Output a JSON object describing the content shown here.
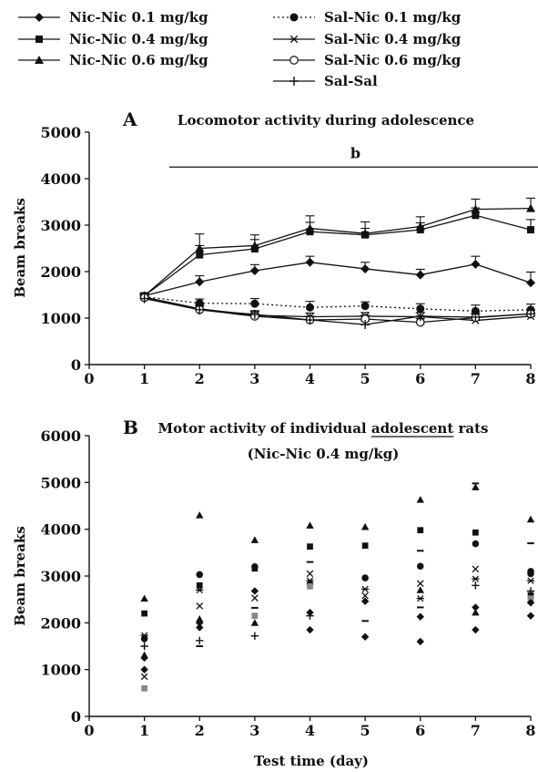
{
  "legend": [
    {
      "key": "nic01",
      "label": "Nic-Nic 0.1 mg/kg",
      "marker": "diamond",
      "line": "solid"
    },
    {
      "key": "nic04",
      "label": "Nic-Nic 0.4 mg/kg",
      "marker": "square",
      "line": "solid"
    },
    {
      "key": "nic06",
      "label": "Nic-Nic 0.6 mg/kg",
      "marker": "triangle",
      "line": "solid"
    },
    {
      "key": "sal01",
      "label": "Sal-Nic 0.1 mg/kg",
      "marker": "circle",
      "line": "dotted"
    },
    {
      "key": "sal04",
      "label": "Sal-Nic 0.4 mg/kg",
      "marker": "star",
      "line": "solid"
    },
    {
      "key": "sal06",
      "label": "Sal-Nic 0.6 mg/kg",
      "marker": "open-circle",
      "line": "solid"
    },
    {
      "key": "salsal",
      "label": "Sal-Sal",
      "marker": "plus",
      "line": "solid"
    }
  ],
  "chart_data": [
    {
      "panel": "A",
      "type": "line",
      "title": "Locomotor activity during adolescence",
      "xlabel": "",
      "ylabel": "Beam breaks",
      "x": [
        1,
        2,
        3,
        4,
        5,
        6,
        7,
        8
      ],
      "xlim": [
        0,
        8
      ],
      "xticks": [
        0,
        1,
        2,
        3,
        4,
        5,
        6,
        7,
        8
      ],
      "ylim": [
        0,
        5000
      ],
      "yticks": [
        0,
        1000,
        2000,
        3000,
        4000,
        5000
      ],
      "significance": {
        "label": "b",
        "x_from": 1.45,
        "x_to": 8.2,
        "y": 4250
      },
      "series": [
        {
          "name": "Nic-Nic 0.1 mg/kg",
          "key": "nic01",
          "values": [
            1480,
            1780,
            2020,
            2200,
            2060,
            1930,
            2160,
            1760
          ],
          "errors": [
            60,
            130,
            130,
            130,
            140,
            120,
            170,
            230
          ]
        },
        {
          "name": "Nic-Nic 0.4 mg/kg",
          "key": "nic04",
          "values": [
            1480,
            2360,
            2490,
            2860,
            2790,
            2900,
            3210,
            2900
          ],
          "errors": [
            60,
            200,
            200,
            200,
            140,
            150,
            160,
            220
          ]
        },
        {
          "name": "Nic-Nic 0.6 mg/kg",
          "key": "nic06",
          "values": [
            1480,
            2500,
            2560,
            2930,
            2820,
            2970,
            3340,
            3360
          ],
          "errors": [
            60,
            310,
            230,
            270,
            250,
            210,
            220,
            220
          ]
        },
        {
          "name": "Sal-Nic 0.1 mg/kg",
          "key": "sal01",
          "values": [
            1460,
            1320,
            1310,
            1230,
            1260,
            1200,
            1150,
            1180
          ],
          "errors": [
            60,
            90,
            110,
            130,
            90,
            110,
            130,
            120
          ]
        },
        {
          "name": "Sal-Nic 0.4 mg/kg",
          "key": "sal04",
          "values": [
            1450,
            1200,
            1060,
            1030,
            1040,
            1030,
            950,
            1040
          ],
          "errors": [
            60,
            80,
            90,
            80,
            80,
            90,
            80,
            80
          ]
        },
        {
          "name": "Sal-Nic 0.6 mg/kg",
          "key": "sal06",
          "values": [
            1440,
            1180,
            1040,
            960,
            980,
            910,
            1010,
            1090
          ],
          "errors": [
            60,
            80,
            80,
            80,
            80,
            80,
            80,
            80
          ]
        },
        {
          "name": "Sal-Sal",
          "key": "salsal",
          "values": [
            1420,
            1180,
            1080,
            960,
            860,
            1040,
            1020,
            1090
          ],
          "errors": [
            60,
            80,
            80,
            80,
            80,
            80,
            80,
            80
          ]
        }
      ]
    },
    {
      "panel": "B",
      "type": "scatter",
      "title": "Motor activity of individual adolescent rats",
      "title_underlined": "adolescent",
      "subtitle": "(Nic-Nic 0.4 mg/kg)",
      "xlabel": "Test time (day)",
      "ylabel": "Beam breaks",
      "xlim": [
        0,
        8
      ],
      "xticks": [
        0,
        1,
        2,
        3,
        4,
        5,
        6,
        7,
        8
      ],
      "ylim": [
        0,
        6000
      ],
      "yticks": [
        0,
        1000,
        2000,
        3000,
        4000,
        5000,
        6000
      ],
      "points": [
        {
          "x": 1,
          "y": 2520,
          "marker": "triangle"
        },
        {
          "x": 1,
          "y": 2200,
          "marker": "square"
        },
        {
          "x": 1,
          "y": 1730,
          "marker": "star"
        },
        {
          "x": 1,
          "y": 1660,
          "marker": "circle"
        },
        {
          "x": 1,
          "y": 1500,
          "marker": "plus"
        },
        {
          "x": 1,
          "y": 1310,
          "marker": "triangle"
        },
        {
          "x": 1,
          "y": 1250,
          "marker": "diamond"
        },
        {
          "x": 1,
          "y": 1000,
          "marker": "diamond"
        },
        {
          "x": 1,
          "y": 850,
          "marker": "x"
        },
        {
          "x": 1,
          "y": 600,
          "marker": "square-gray"
        },
        {
          "x": 2,
          "y": 4300,
          "marker": "triangle"
        },
        {
          "x": 2,
          "y": 3030,
          "marker": "circle"
        },
        {
          "x": 2,
          "y": 2800,
          "marker": "square"
        },
        {
          "x": 2,
          "y": 2700,
          "marker": "star"
        },
        {
          "x": 2,
          "y": 2360,
          "marker": "x"
        },
        {
          "x": 2,
          "y": 2080,
          "marker": "triangle"
        },
        {
          "x": 2,
          "y": 2000,
          "marker": "diamond"
        },
        {
          "x": 2,
          "y": 1900,
          "marker": "diamond"
        },
        {
          "x": 2,
          "y": 1620,
          "marker": "plus"
        },
        {
          "x": 2,
          "y": 1500,
          "marker": "dash"
        },
        {
          "x": 3,
          "y": 3770,
          "marker": "triangle"
        },
        {
          "x": 3,
          "y": 3200,
          "marker": "circle"
        },
        {
          "x": 3,
          "y": 3160,
          "marker": "square"
        },
        {
          "x": 3,
          "y": 2680,
          "marker": "diamond"
        },
        {
          "x": 3,
          "y": 2530,
          "marker": "x"
        },
        {
          "x": 3,
          "y": 2320,
          "marker": "dash"
        },
        {
          "x": 3,
          "y": 2150,
          "marker": "square-gray"
        },
        {
          "x": 3,
          "y": 2000,
          "marker": "triangle"
        },
        {
          "x": 3,
          "y": 1720,
          "marker": "plus"
        },
        {
          "x": 4,
          "y": 4080,
          "marker": "triangle"
        },
        {
          "x": 4,
          "y": 3630,
          "marker": "square"
        },
        {
          "x": 4,
          "y": 3300,
          "marker": "dash"
        },
        {
          "x": 4,
          "y": 3050,
          "marker": "x"
        },
        {
          "x": 4,
          "y": 2900,
          "marker": "star"
        },
        {
          "x": 4,
          "y": 2830,
          "marker": "circle"
        },
        {
          "x": 4,
          "y": 2780,
          "marker": "square-gray"
        },
        {
          "x": 4,
          "y": 2220,
          "marker": "diamond"
        },
        {
          "x": 4,
          "y": 2150,
          "marker": "plus"
        },
        {
          "x": 4,
          "y": 1850,
          "marker": "diamond"
        },
        {
          "x": 5,
          "y": 4050,
          "marker": "triangle"
        },
        {
          "x": 5,
          "y": 3650,
          "marker": "square"
        },
        {
          "x": 5,
          "y": 2960,
          "marker": "circle"
        },
        {
          "x": 5,
          "y": 2720,
          "marker": "star"
        },
        {
          "x": 5,
          "y": 2580,
          "marker": "x"
        },
        {
          "x": 5,
          "y": 2460,
          "marker": "diamond"
        },
        {
          "x": 5,
          "y": 2040,
          "marker": "dash"
        },
        {
          "x": 5,
          "y": 1700,
          "marker": "diamond"
        },
        {
          "x": 6,
          "y": 4630,
          "marker": "triangle"
        },
        {
          "x": 6,
          "y": 3980,
          "marker": "square"
        },
        {
          "x": 6,
          "y": 3540,
          "marker": "dash"
        },
        {
          "x": 6,
          "y": 3210,
          "marker": "circle"
        },
        {
          "x": 6,
          "y": 2840,
          "marker": "x"
        },
        {
          "x": 6,
          "y": 2700,
          "marker": "triangle"
        },
        {
          "x": 6,
          "y": 2520,
          "marker": "star"
        },
        {
          "x": 6,
          "y": 2330,
          "marker": "dash"
        },
        {
          "x": 6,
          "y": 2130,
          "marker": "diamond"
        },
        {
          "x": 6,
          "y": 1600,
          "marker": "diamond"
        },
        {
          "x": 7,
          "y": 4980,
          "marker": "dash"
        },
        {
          "x": 7,
          "y": 4900,
          "marker": "triangle"
        },
        {
          "x": 7,
          "y": 3930,
          "marker": "square"
        },
        {
          "x": 7,
          "y": 3690,
          "marker": "circle"
        },
        {
          "x": 7,
          "y": 3150,
          "marker": "x"
        },
        {
          "x": 7,
          "y": 2940,
          "marker": "star"
        },
        {
          "x": 7,
          "y": 2800,
          "marker": "plus"
        },
        {
          "x": 7,
          "y": 2330,
          "marker": "diamond"
        },
        {
          "x": 7,
          "y": 2220,
          "marker": "triangle"
        },
        {
          "x": 7,
          "y": 1850,
          "marker": "diamond"
        },
        {
          "x": 8,
          "y": 4210,
          "marker": "triangle"
        },
        {
          "x": 8,
          "y": 3700,
          "marker": "dash"
        },
        {
          "x": 8,
          "y": 3100,
          "marker": "circle"
        },
        {
          "x": 8,
          "y": 3050,
          "marker": "circle"
        },
        {
          "x": 8,
          "y": 2900,
          "marker": "star"
        },
        {
          "x": 8,
          "y": 2680,
          "marker": "plus"
        },
        {
          "x": 8,
          "y": 2590,
          "marker": "square"
        },
        {
          "x": 8,
          "y": 2520,
          "marker": "square-gray"
        },
        {
          "x": 8,
          "y": 2430,
          "marker": "diamond"
        },
        {
          "x": 8,
          "y": 2150,
          "marker": "diamond"
        }
      ]
    }
  ]
}
